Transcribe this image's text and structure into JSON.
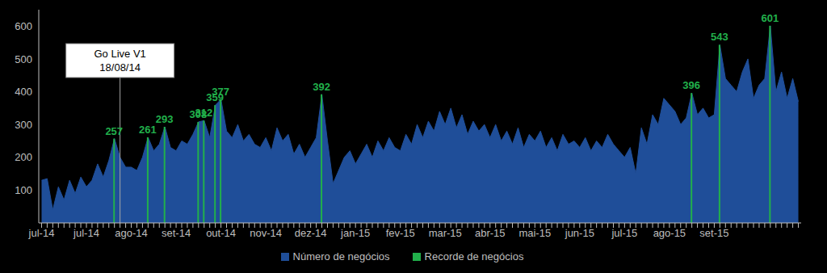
{
  "chart_data": {
    "type": "area",
    "categories": [
      "jul-14",
      null,
      null,
      null,
      null,
      null,
      null,
      null,
      "jul-14",
      null,
      null,
      null,
      null,
      null,
      null,
      null,
      "ago-14",
      null,
      null,
      null,
      null,
      null,
      null,
      null,
      "set-14",
      null,
      null,
      null,
      null,
      null,
      null,
      null,
      "out-14",
      null,
      null,
      null,
      null,
      null,
      null,
      null,
      "nov-14",
      null,
      null,
      null,
      null,
      null,
      null,
      null,
      "dez-14",
      null,
      null,
      null,
      null,
      null,
      null,
      null,
      "jan-15",
      null,
      null,
      null,
      null,
      null,
      null,
      null,
      "fev-15",
      null,
      null,
      null,
      null,
      null,
      null,
      null,
      "mar-15",
      null,
      null,
      null,
      null,
      null,
      null,
      null,
      "abr-15",
      null,
      null,
      null,
      null,
      null,
      null,
      null,
      "mai-15",
      null,
      null,
      null,
      null,
      null,
      null,
      null,
      "jun-15",
      null,
      null,
      null,
      null,
      null,
      null,
      null,
      "jul-15",
      null,
      null,
      null,
      null,
      null,
      null,
      null,
      "ago-15",
      null,
      null,
      null,
      null,
      null,
      null,
      null,
      "set-15",
      null,
      null,
      null,
      null,
      null,
      null,
      null,
      null,
      null,
      null,
      null,
      null,
      null,
      null,
      null
    ],
    "series": [
      {
        "name": "Número de negócios",
        "type": "area",
        "color": "#1F4E99",
        "values": [
          130,
          135,
          40,
          110,
          70,
          130,
          90,
          140,
          110,
          130,
          180,
          140,
          190,
          257,
          200,
          170,
          170,
          160,
          200,
          261,
          220,
          240,
          293,
          230,
          220,
          250,
          240,
          270,
          308,
          312,
          260,
          359,
          377,
          280,
          260,
          300,
          250,
          270,
          240,
          230,
          260,
          220,
          290,
          250,
          270,
          210,
          240,
          200,
          230,
          260,
          392,
          250,
          120,
          160,
          200,
          220,
          180,
          210,
          240,
          200,
          250,
          220,
          260,
          230,
          220,
          270,
          240,
          300,
          260,
          310,
          280,
          340,
          300,
          350,
          290,
          330,
          270,
          310,
          280,
          300,
          260,
          300,
          250,
          280,
          240,
          290,
          230,
          270,
          250,
          280,
          230,
          260,
          220,
          270,
          240,
          250,
          230,
          260,
          220,
          250,
          230,
          270,
          240,
          220,
          200,
          230,
          150,
          290,
          240,
          330,
          300,
          380,
          360,
          340,
          300,
          320,
          396,
          330,
          350,
          320,
          330,
          543,
          440,
          420,
          400,
          460,
          500,
          380,
          420,
          440,
          601,
          400,
          460,
          380,
          440,
          370
        ]
      },
      {
        "name": "Recorde de negócios",
        "type": "bar",
        "color": "#21B04B",
        "data_labels": true,
        "values": [
          null,
          null,
          null,
          null,
          null,
          null,
          null,
          null,
          null,
          null,
          null,
          null,
          null,
          257,
          null,
          null,
          null,
          null,
          null,
          261,
          null,
          null,
          293,
          null,
          null,
          null,
          null,
          null,
          308,
          312,
          null,
          359,
          377,
          null,
          null,
          null,
          null,
          null,
          null,
          null,
          null,
          null,
          null,
          null,
          null,
          null,
          null,
          null,
          null,
          null,
          392,
          null,
          null,
          null,
          null,
          null,
          null,
          null,
          null,
          null,
          null,
          null,
          null,
          null,
          null,
          null,
          null,
          null,
          null,
          null,
          null,
          null,
          null,
          null,
          null,
          null,
          null,
          null,
          null,
          null,
          null,
          null,
          null,
          null,
          null,
          null,
          null,
          null,
          null,
          null,
          null,
          null,
          null,
          null,
          null,
          null,
          null,
          null,
          null,
          null,
          null,
          null,
          null,
          null,
          null,
          null,
          null,
          null,
          null,
          null,
          null,
          null,
          null,
          null,
          null,
          null,
          396,
          null,
          null,
          null,
          null,
          543,
          null,
          null,
          null,
          null,
          null,
          null,
          null,
          null,
          601,
          null,
          null,
          null,
          null,
          null
        ]
      }
    ],
    "ylim": [
      0,
      650
    ],
    "yticks": [
      100,
      200,
      300,
      400,
      500,
      600
    ],
    "grid": false,
    "legend": "bottom",
    "annotations": [
      {
        "label": "Go Live V1",
        "date": "18/08/14",
        "position": 14
      }
    ]
  }
}
